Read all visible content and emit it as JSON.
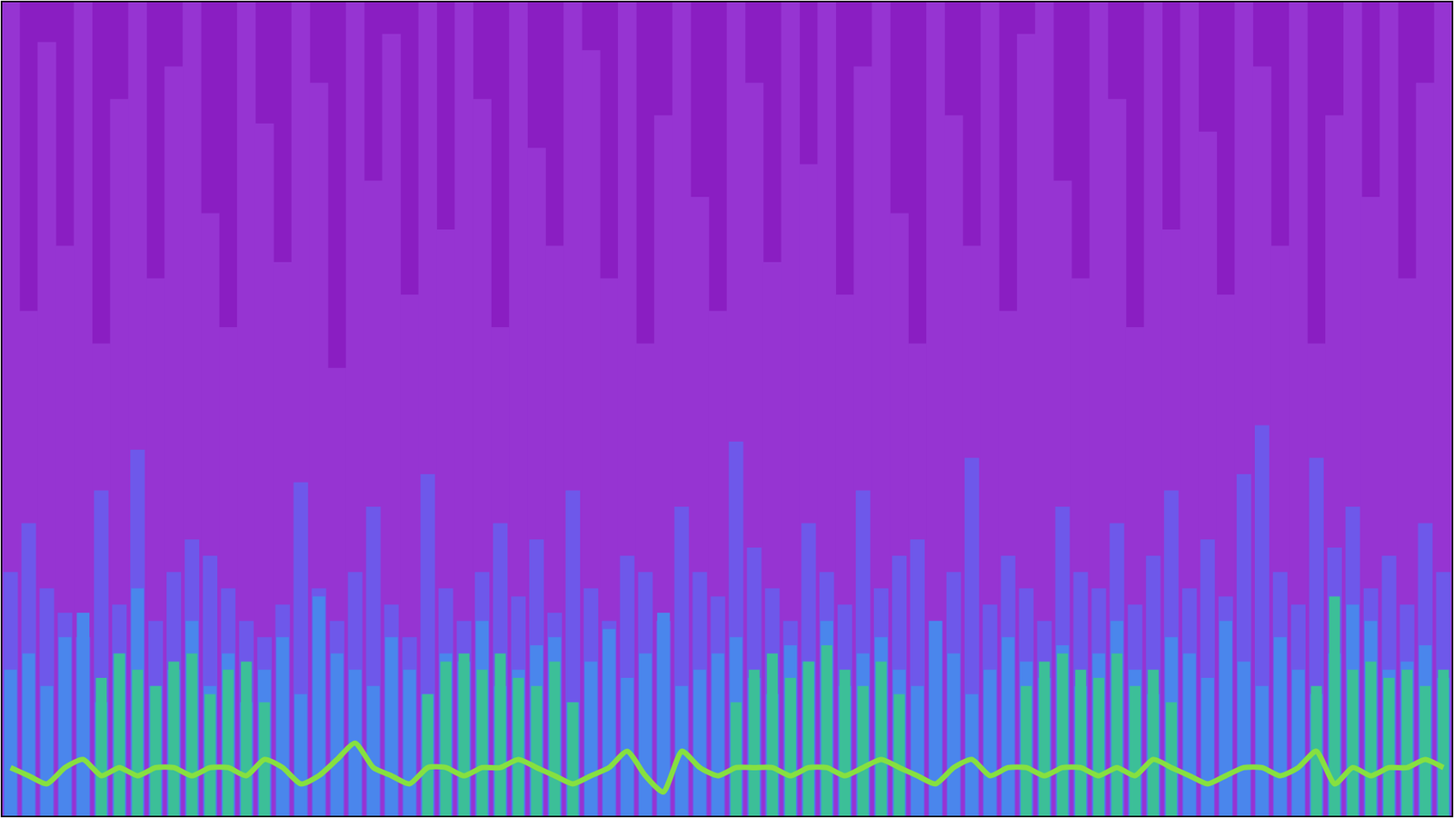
{
  "chart_data": {
    "type": "bar",
    "stacked": false,
    "grid": false,
    "tick_labels": false,
    "categories": [
      null,
      null,
      null,
      null,
      null,
      null,
      null,
      null,
      null,
      null,
      null,
      null,
      null,
      null,
      null,
      null,
      null,
      null,
      null,
      null,
      null,
      null,
      null,
      null,
      null,
      null,
      null,
      null,
      null,
      null,
      null,
      null,
      null,
      null,
      null,
      null,
      null,
      null,
      null,
      null,
      null,
      null,
      null,
      null,
      null,
      null,
      null,
      null,
      null,
      null,
      null,
      null,
      null,
      null,
      null,
      null,
      null,
      null,
      null,
      null,
      null,
      null,
      null,
      null,
      null,
      null,
      null,
      null,
      null,
      null,
      null,
      null,
      null,
      null,
      null,
      null,
      null,
      null,
      null,
      null
    ],
    "ylim": [
      0,
      100
    ],
    "series": [
      {
        "type": "bar",
        "color": "#9634d2",
        "values": [
          100,
          62,
          95,
          70,
          100,
          58,
          88,
          100,
          66,
          92,
          100,
          74,
          60,
          100,
          85,
          68,
          100,
          90,
          55,
          100,
          78,
          96,
          64,
          100,
          72,
          100,
          88,
          60,
          100,
          82,
          70,
          100,
          94,
          66,
          100,
          58,
          86,
          100,
          76,
          62,
          100,
          90,
          68,
          100,
          80,
          100,
          64,
          92,
          100,
          74,
          58,
          100,
          86,
          70,
          100,
          62,
          96,
          100,
          78,
          66,
          100,
          88,
          60,
          100,
          72,
          100,
          84,
          64,
          100,
          92,
          70,
          100,
          58,
          86,
          100,
          76,
          100,
          66,
          90,
          100
        ]
      },
      {
        "type": "bar",
        "color": "#6e58ea",
        "values": [
          30,
          36,
          28,
          25,
          22,
          40,
          26,
          45,
          24,
          30,
          34,
          32,
          28,
          24,
          22,
          26,
          41,
          28,
          24,
          30,
          38,
          26,
          22,
          42,
          28,
          24,
          30,
          36,
          27,
          34,
          25,
          40,
          28,
          24,
          32,
          30,
          24,
          38,
          30,
          27,
          46,
          33,
          28,
          24,
          36,
          30,
          26,
          40,
          28,
          32,
          34,
          24,
          30,
          44,
          26,
          32,
          28,
          24,
          38,
          30,
          28,
          36,
          26,
          32,
          40,
          28,
          34,
          27,
          42,
          48,
          30,
          26,
          44,
          33,
          38,
          28,
          32,
          26,
          36,
          30
        ]
      },
      {
        "type": "bar",
        "color": "#4a86ec",
        "values": [
          18,
          20,
          16,
          22,
          25,
          14,
          20,
          28,
          16,
          18,
          24,
          16,
          20,
          14,
          18,
          22,
          15,
          27,
          20,
          18,
          16,
          22,
          18,
          15,
          20,
          19,
          24,
          16,
          18,
          21,
          22,
          14,
          19,
          23,
          17,
          20,
          25,
          16,
          18,
          20,
          22,
          17,
          15,
          21,
          19,
          24,
          16,
          20,
          22,
          18,
          16,
          24,
          20,
          15,
          18,
          22,
          19,
          17,
          21,
          16,
          20,
          24,
          18,
          15,
          22,
          20,
          17,
          24,
          19,
          16,
          22,
          18,
          15,
          20,
          26,
          24,
          18,
          19,
          21,
          17
        ]
      },
      {
        "type": "bar",
        "color": "#3cbf98",
        "values": [
          null,
          null,
          null,
          null,
          null,
          17,
          20,
          18,
          16,
          19,
          20,
          15,
          18,
          19,
          14,
          null,
          null,
          null,
          null,
          null,
          null,
          null,
          null,
          15,
          19,
          20,
          18,
          20,
          17,
          16,
          19,
          14,
          null,
          null,
          null,
          null,
          null,
          null,
          null,
          null,
          14,
          18,
          20,
          17,
          19,
          21,
          18,
          16,
          19,
          15,
          null,
          null,
          null,
          null,
          null,
          null,
          16,
          19,
          20,
          18,
          17,
          20,
          16,
          18,
          14,
          null,
          null,
          null,
          null,
          null,
          null,
          null,
          16,
          27,
          18,
          19,
          17,
          18,
          16,
          18
        ]
      },
      {
        "type": "line",
        "color": "#86e040",
        "values": [
          6,
          5,
          4,
          6,
          7,
          5,
          6,
          5,
          6,
          6,
          5,
          6,
          6,
          5,
          7,
          6,
          4,
          5,
          7,
          9,
          6,
          5,
          4,
          6,
          6,
          5,
          6,
          6,
          7,
          6,
          5,
          4,
          5,
          6,
          8,
          5,
          3,
          8,
          6,
          5,
          6,
          6,
          6,
          5,
          6,
          6,
          5,
          6,
          7,
          6,
          5,
          4,
          6,
          7,
          5,
          6,
          6,
          5,
          6,
          6,
          5,
          6,
          5,
          7,
          6,
          5,
          4,
          5,
          6,
          6,
          5,
          6,
          8,
          4,
          6,
          5,
          6,
          6,
          7,
          6
        ]
      }
    ]
  }
}
